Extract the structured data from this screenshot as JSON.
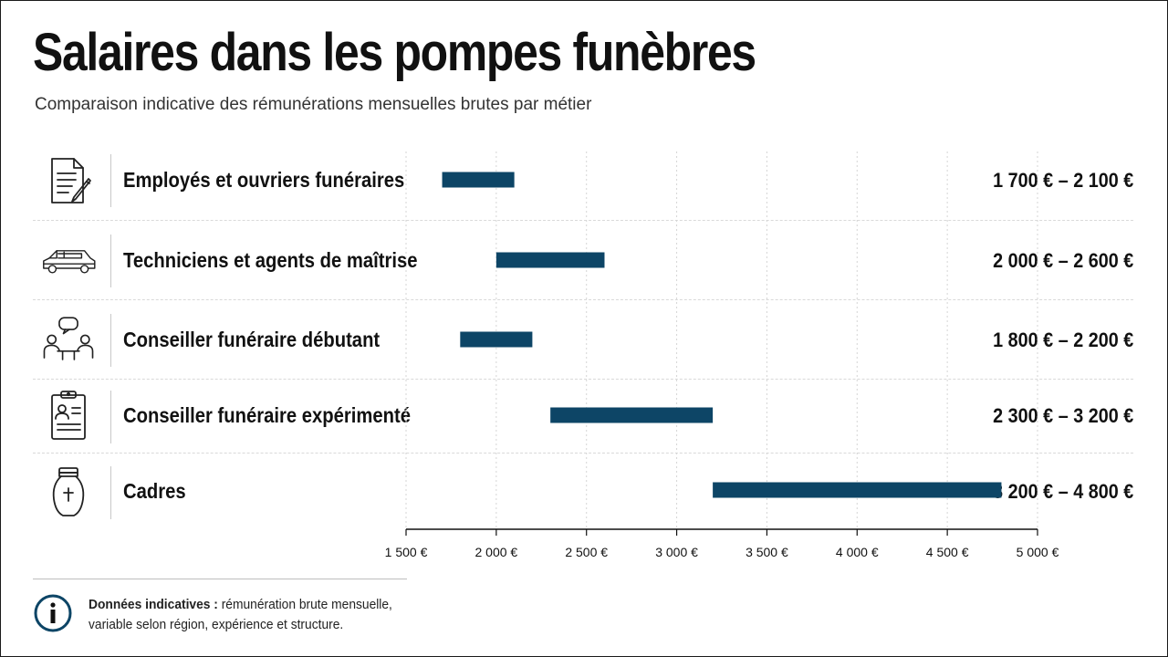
{
  "chart_data": {
    "type": "bar",
    "orientation": "horizontal",
    "variant": "range",
    "title": "Salaires dans les pompes funèbres",
    "subtitle": "Comparaison indicative des rémunérations mensuelles brutes par métier",
    "xlim": [
      1500,
      5000
    ],
    "x_ticks": [
      1500,
      2000,
      2500,
      3000,
      3500,
      4000,
      4500,
      5000
    ],
    "x_tick_labels": [
      "1 500 €",
      "2 000 €",
      "2 500 €",
      "3 000 €",
      "3 500 €",
      "4 000 €",
      "4 500 €",
      "5 000 €"
    ],
    "grid": "vertical-dotted",
    "bar_color": "#0d4566",
    "categories": [
      {
        "label": "Employés et ouvriers funéraires",
        "icon": "document-pen-icon",
        "min": 1700,
        "max": 2100,
        "range_label": "1 700 € – 2 100 €"
      },
      {
        "label": "Techniciens et agents de maîtrise",
        "icon": "hearse-icon",
        "min": 2000,
        "max": 2600,
        "range_label": "2 000 € – 2 600 €"
      },
      {
        "label": "Conseiller funéraire débutant",
        "icon": "conversation-icon",
        "min": 1800,
        "max": 2200,
        "range_label": "1 800 € – 2 200 €"
      },
      {
        "label": "Conseiller funéraire expérimenté",
        "icon": "clipboard-profile-icon",
        "min": 2300,
        "max": 3200,
        "range_label": "2 300 € – 3 200 €"
      },
      {
        "label": "Cadres",
        "icon": "urn-icon",
        "min": 3200,
        "max": 4800,
        "range_label": "3 200 € – 4 800 €"
      }
    ]
  },
  "footnote": {
    "bold": "Données indicatives :",
    "text": " rémunération brute mensuelle, variable selon région, expérience et structure."
  }
}
